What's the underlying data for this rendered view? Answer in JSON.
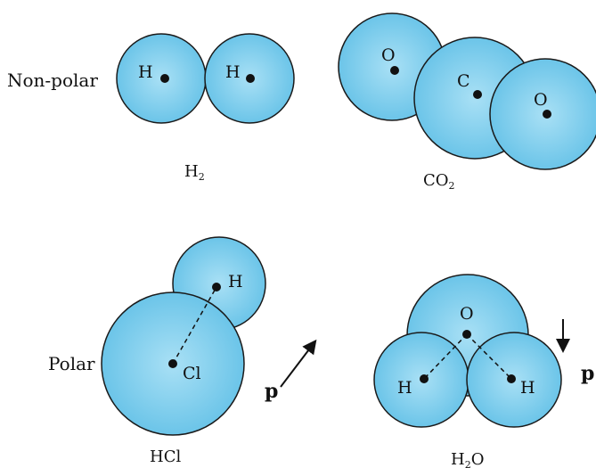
{
  "row_labels": {
    "nonpolar": "Non-polar",
    "polar": "Polar"
  },
  "molecules": {
    "h2": {
      "atoms": [
        "H",
        "H"
      ],
      "name_main": "H",
      "name_sub": "2",
      "name_tail": ""
    },
    "co2": {
      "atoms": [
        "O",
        "C",
        "O"
      ],
      "name_main": "CO",
      "name_sub": "2",
      "name_tail": ""
    },
    "hcl": {
      "atoms": [
        "H",
        "Cl"
      ],
      "name": "HCl",
      "dipole_symbol": "p"
    },
    "h2o": {
      "atoms": [
        "O",
        "H",
        "H"
      ],
      "name_main": "H",
      "name_sub": "2",
      "name_tail": "O",
      "dipole_symbol": "p"
    }
  },
  "colors": {
    "atom_fill": "#5fbfe6",
    "atom_highlight": "#a9e0f5",
    "outline": "#1a1a1a"
  }
}
